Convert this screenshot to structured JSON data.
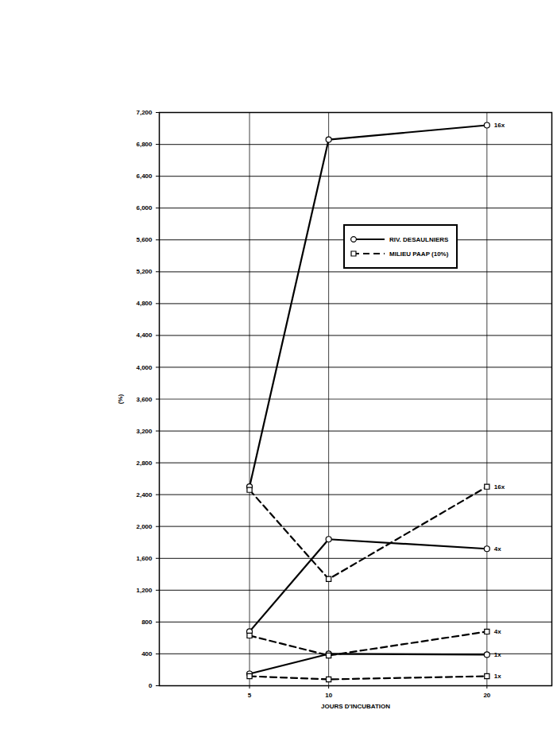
{
  "chart_data": {
    "type": "line",
    "x": [
      5,
      10,
      20
    ],
    "xlabel": "JOURS D'INCUBATION",
    "ylabel": "(%)",
    "xlim": [
      -0.7,
      24.1
    ],
    "xticks": [
      5,
      10,
      20
    ],
    "ylim": [
      0,
      7200
    ],
    "yticks": [
      0,
      400,
      800,
      {
        "value": 1200,
        "label": "1,200"
      },
      {
        "value": 1600,
        "label": "1,600"
      },
      {
        "value": 2000,
        "label": "2,000"
      },
      {
        "value": 2400,
        "label": "2,400"
      },
      {
        "value": 2800,
        "label": "2,800"
      },
      {
        "value": 3200,
        "label": "3,200"
      },
      {
        "value": 3600,
        "label": "3,600"
      },
      {
        "value": 4000,
        "label": "4,000"
      },
      {
        "value": 4400,
        "label": "4,400"
      },
      {
        "value": 4800,
        "label": "4,800"
      },
      {
        "value": 5200,
        "label": "5,200"
      },
      {
        "value": 5600,
        "label": "5,600"
      },
      {
        "value": 6000,
        "label": "6,000"
      },
      {
        "value": 6400,
        "label": "6,400"
      },
      {
        "value": 6800,
        "label": "6,800"
      },
      {
        "value": 7200,
        "label": "7,200"
      }
    ],
    "grid": true,
    "legend": "upper right",
    "series": [
      {
        "name": "RIV. DESAULNIERS",
        "color": "#000000",
        "marker": "circle",
        "line_style": "solid",
        "curves": [
          {
            "label": "16x",
            "values": [
              2500,
              6860,
              7040
            ]
          },
          {
            "label": "4x",
            "values": [
              680,
              1840,
              1720
            ]
          },
          {
            "label": "1x",
            "values": [
              150,
              400,
              390
            ]
          }
        ]
      },
      {
        "name": "MILIEU PAAP (10%)",
        "color": "#000000",
        "marker": "square",
        "line_style": "dashed",
        "curves": [
          {
            "label": "16x",
            "values": [
              2460,
              1340,
              2500
            ]
          },
          {
            "label": "4x",
            "values": [
              630,
              380,
              680
            ]
          },
          {
            "label": "1x",
            "values": [
              120,
              80,
              120
            ]
          }
        ]
      }
    ]
  }
}
